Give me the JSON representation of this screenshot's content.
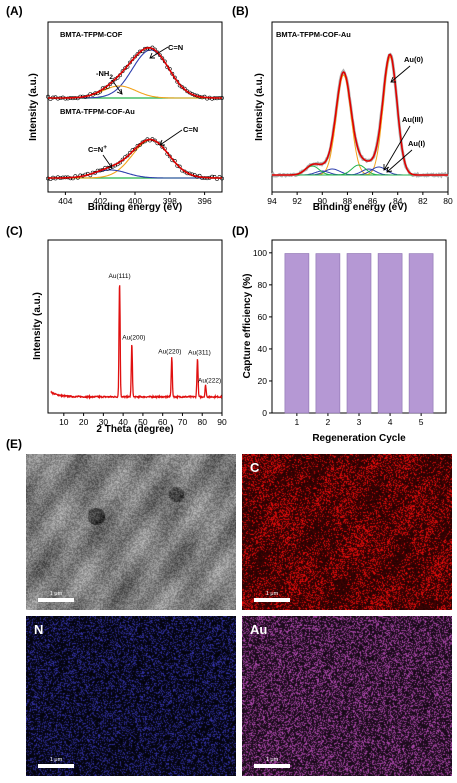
{
  "panels": {
    "A": "(A)",
    "B": "(B)",
    "C": "(C)",
    "D": "(D)",
    "E": "(E)"
  },
  "colors": {
    "envelope": "#e00000",
    "component_blue": "#2e3fae",
    "component_orange": "#f2a31c",
    "component_green": "#23b24b",
    "bars": "#b598d4",
    "xrd_line": "#e01010"
  },
  "chart_data": [
    {
      "id": "A",
      "type": "line",
      "subplots": [
        {
          "title": "BMTA-TFPM-COF",
          "annotations": [
            "-NH",
            "2",
            "C=N"
          ]
        },
        {
          "title": "BMTA-TFPM-COF-Au",
          "annotations": [
            "C=N",
            "+",
            "C=N"
          ]
        }
      ],
      "xlabel": "Binding energy (eV)",
      "ylabel": "Intensity (a.u.)",
      "xlim": [
        405,
        395
      ],
      "xticks": [
        404,
        402,
        400,
        398,
        396
      ]
    },
    {
      "id": "B",
      "type": "line",
      "title": "BMTA-TFPM-COF-Au",
      "annotations": [
        "Au(0)",
        "Au(III)",
        "Au(I)"
      ],
      "xlabel": "Binding energy (eV)",
      "ylabel": "Intensity (a.u.)",
      "xlim": [
        94,
        80
      ],
      "xticks": [
        94,
        92,
        90,
        88,
        86,
        84,
        82,
        80
      ]
    },
    {
      "id": "C",
      "type": "line",
      "xlabel": "2 Theta (degree)",
      "ylabel": "Intensity (a.u.)",
      "xlim": [
        2,
        90
      ],
      "xticks": [
        10,
        20,
        30,
        40,
        50,
        60,
        70,
        80,
        90
      ],
      "peaks": [
        {
          "x": 38.2,
          "h": 1.0,
          "label": "Au(111)"
        },
        {
          "x": 44.4,
          "h": 0.46,
          "label": "Au(200)"
        },
        {
          "x": 64.6,
          "h": 0.34,
          "label": "Au(220)"
        },
        {
          "x": 77.6,
          "h": 0.33,
          "label": "Au(311)"
        },
        {
          "x": 81.7,
          "h": 0.1,
          "label": "Au(222)"
        }
      ]
    },
    {
      "id": "D",
      "type": "bar",
      "categories": [
        "1",
        "2",
        "3",
        "4",
        "5"
      ],
      "values": [
        99.6,
        99.5,
        99.6,
        99.6,
        99.5
      ],
      "xlabel": "Regeneration Cycle",
      "ylabel": "Capture efficiency (%)",
      "ylim": [
        0,
        108
      ],
      "yticks": [
        0,
        20,
        40,
        60,
        80,
        100
      ]
    }
  ],
  "eds": {
    "C": "C",
    "N": "N",
    "Au": "Au",
    "scale": "1 μm",
    "maps": {
      "sem": "sem-image",
      "c": "c-map",
      "n": "n-map",
      "au": "au-map"
    }
  }
}
